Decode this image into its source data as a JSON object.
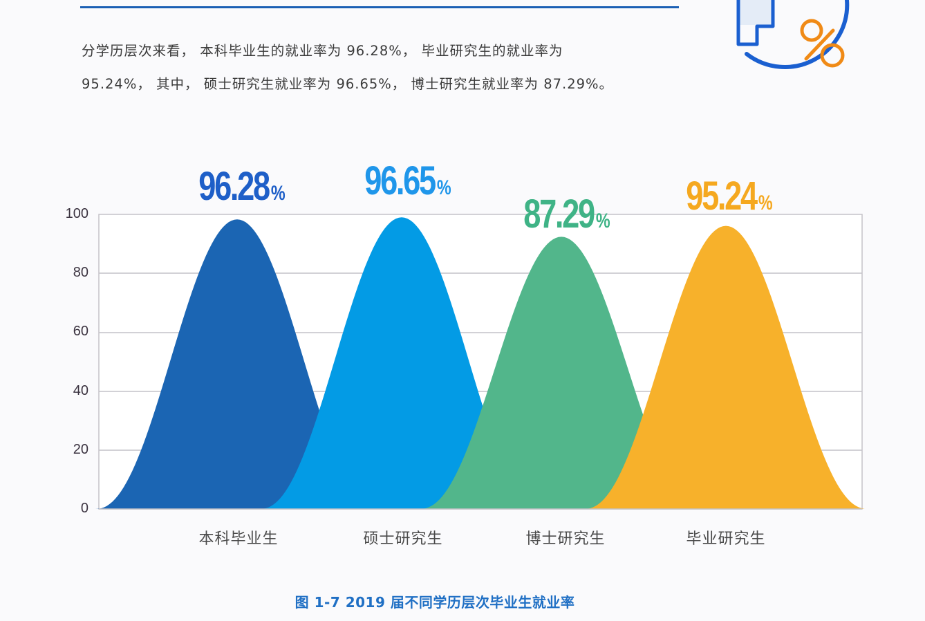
{
  "intro": {
    "line1": "分学历层次来看， 本科毕业生的就业率为 96.28%， 毕业研究生的就业率为",
    "line2": "95.24%， 其中， 硕士研究生就业率为 96.65%， 博士研究生就业率为 87.29%。"
  },
  "decor": {
    "icon": "percent-badge-icon",
    "colors": {
      "ring": "#1a5fd0",
      "percent": "#f08a16"
    }
  },
  "chart_data": {
    "type": "area",
    "title": "图 1-7 2019 届不同学历层次毕业生就业率",
    "xlabel": "",
    "ylabel": "",
    "ylim": [
      0,
      100
    ],
    "yticks": [
      0,
      20,
      40,
      60,
      80,
      100
    ],
    "grid": true,
    "legend": "none",
    "categories": [
      "本科毕业生",
      "硕士研究生",
      "博士研究生",
      "毕业研究生"
    ],
    "values": [
      96.28,
      96.65,
      87.29,
      95.24
    ],
    "value_labels": [
      "96.28",
      "96.65",
      "87.29",
      "95.24"
    ],
    "value_suffix": "%",
    "colors": [
      "#1b65b3",
      "#039be5",
      "#52b68b",
      "#f7b12b"
    ],
    "label_colors": [
      "#1e5fc8",
      "#1f96ea",
      "#3fb386",
      "#f5a81f"
    ],
    "shape": "overlapping bell curves"
  },
  "axis": {
    "ticks": [
      "100",
      "80",
      "60",
      "40",
      "20",
      "0"
    ]
  },
  "caption": "图 1-7 2019 届不同学历层次毕业生就业率"
}
